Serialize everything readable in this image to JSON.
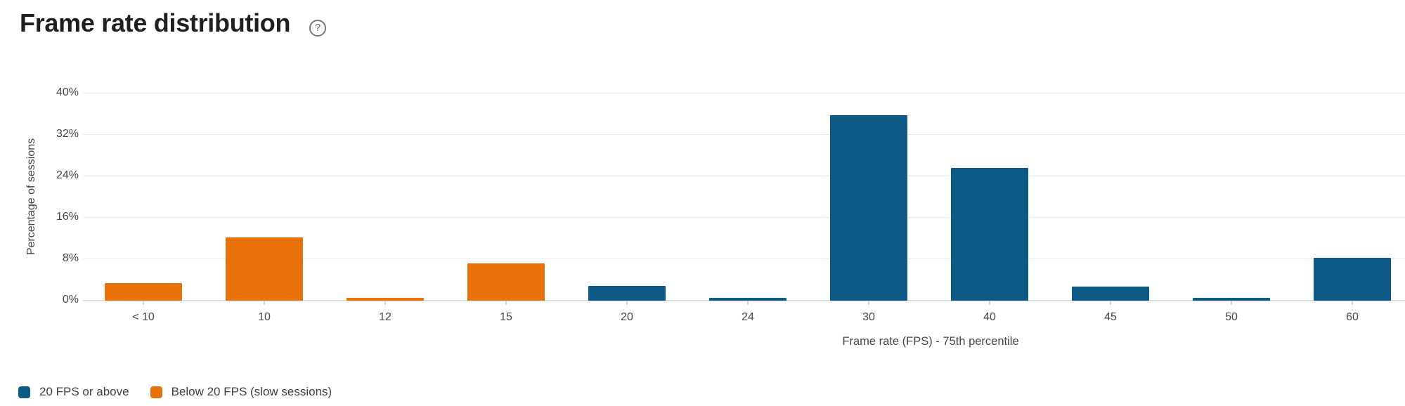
{
  "header": {
    "title": "Frame rate distribution",
    "help_glyph": "?",
    "help_icon": "circled-question-mark-icon"
  },
  "colors": {
    "blue": "#0e5a87",
    "orange": "#e8710a",
    "grid": "#e9ebed",
    "axis_line": "#dde0e3",
    "tick_mark": "#d2d5d8",
    "title_text": "#1f1f1f",
    "label_text": "#444746",
    "legend_text": "#3c4043"
  },
  "chart_data": {
    "type": "bar",
    "title": "Frame rate distribution",
    "categories": [
      "< 10",
      "10",
      "12",
      "15",
      "20",
      "24",
      "30",
      "40",
      "45",
      "50",
      "60"
    ],
    "values": [
      3.4,
      12.2,
      0.5,
      7.2,
      2.8,
      0.5,
      35.8,
      25.6,
      2.7,
      0.5,
      8.3
    ],
    "series_colors": [
      "orange",
      "orange",
      "orange",
      "orange",
      "blue",
      "blue",
      "blue",
      "blue",
      "blue",
      "blue",
      "blue"
    ],
    "xlabel": "Frame rate (FPS) - 75th percentile",
    "ylabel": "Percentage of sessions",
    "y_ticks": [
      "0%",
      "8%",
      "16%",
      "24%",
      "32%",
      "40%"
    ],
    "ylim": [
      0,
      40
    ],
    "grid": "horizontal",
    "legend_position": "bottom-left",
    "legend": [
      {
        "label": "20 FPS or above",
        "color": "blue"
      },
      {
        "label": "Below 20 FPS (slow sessions)",
        "color": "orange"
      }
    ]
  }
}
